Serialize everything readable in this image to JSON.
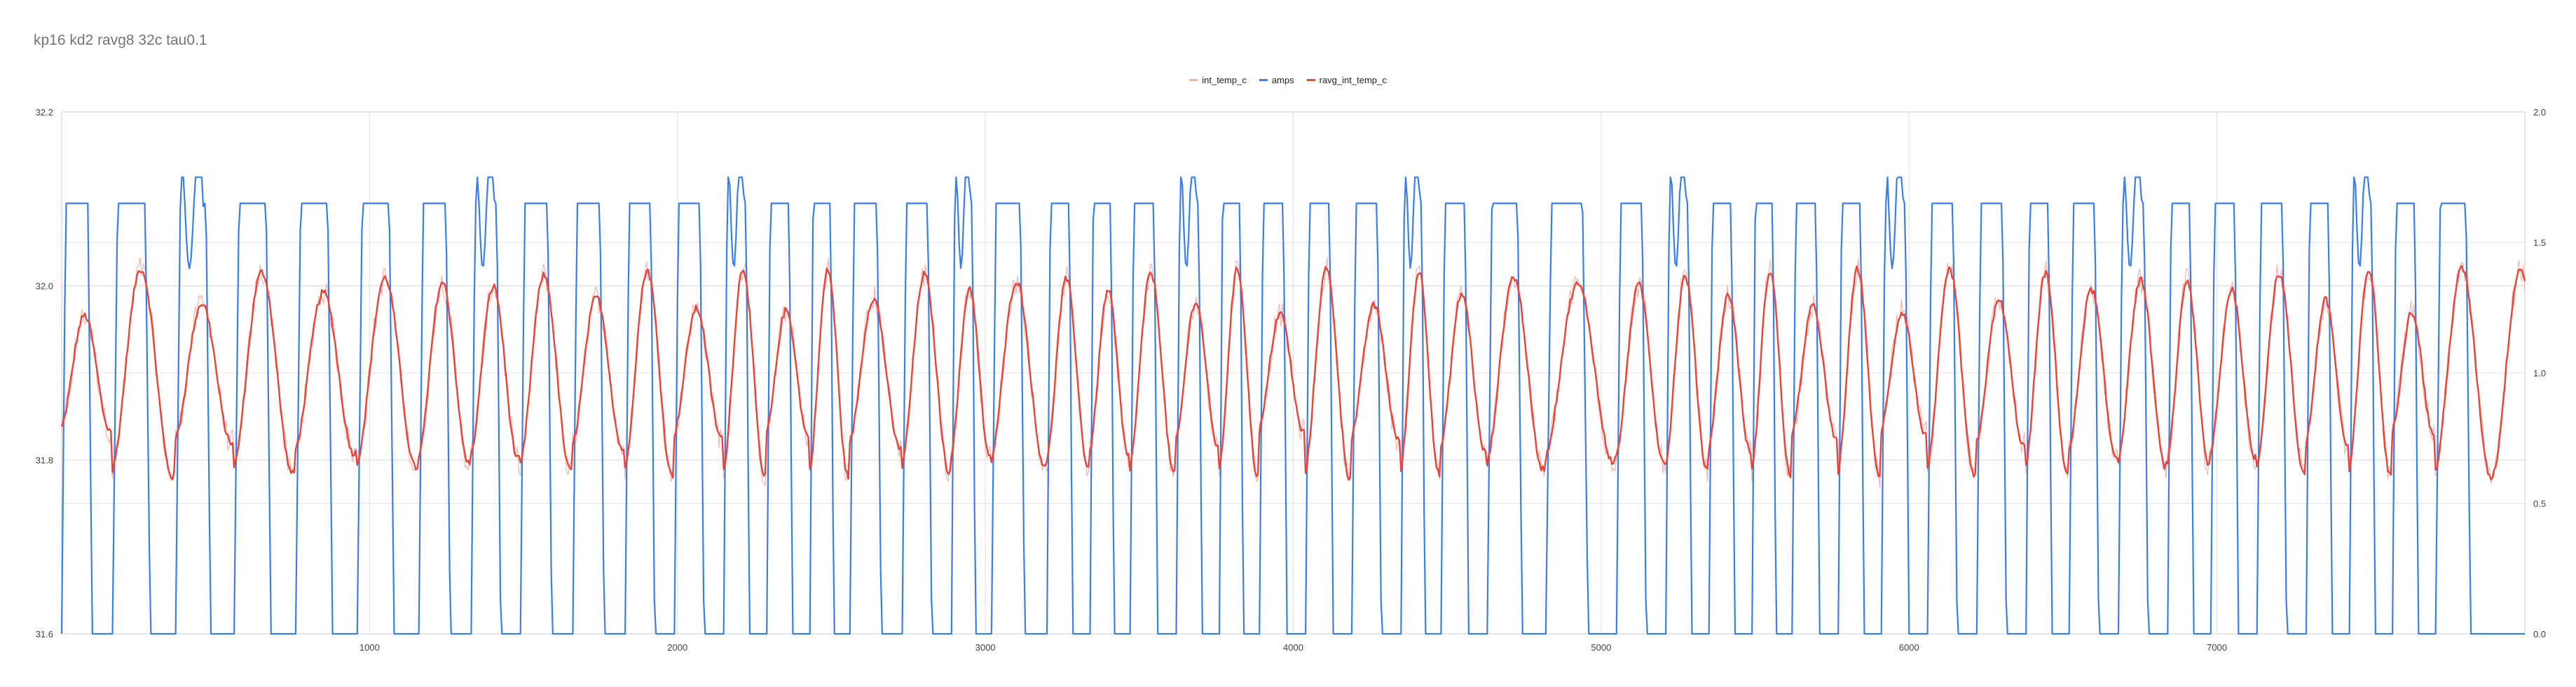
{
  "chart_data": {
    "type": "line",
    "title": "kp16 kd2 ravg8 32c tau0.1",
    "xlim": [
      0,
      8000
    ],
    "x_ticks": [
      1000,
      2000,
      3000,
      4000,
      5000,
      6000,
      7000
    ],
    "y_left": {
      "lim": [
        31.6,
        32.2
      ],
      "ticks": [
        "31.6",
        "31.8",
        "32.0",
        "32.2"
      ]
    },
    "y_right": {
      "lim": [
        0,
        2
      ],
      "ticks": [
        "0.0",
        "0.5",
        "1.0",
        "1.5",
        "2.0"
      ]
    },
    "grid": true,
    "legend_position": "top-center",
    "series": [
      {
        "name": "int_temp_c",
        "axis": "left",
        "color": "#f4b6b1",
        "stroke_width": 1.2,
        "values": []
      },
      {
        "name": "amps",
        "axis": "right",
        "color": "#3b7de9",
        "stroke_width": 2.2,
        "values": []
      },
      {
        "name": "ravg_int_temp_c",
        "axis": "left",
        "color": "#e8443a",
        "stroke_width": 2.4,
        "values": []
      }
    ],
    "cycle_starts": [
      0,
      165,
      370,
      560,
      760,
      960,
      1160,
      1330,
      1490,
      1660,
      1830,
      1990,
      2150,
      2290,
      2430,
      2560,
      2730,
      2890,
      3020,
      3200,
      3340,
      3470,
      3620,
      3760,
      3890,
      4040,
      4190,
      4350,
      4480,
      4630,
      4820,
      5050,
      5210,
      5350,
      5490,
      5620,
      5770,
      5910,
      6060,
      6220,
      6380,
      6520,
      6680,
      6840,
      6980,
      7130,
      7290,
      7430,
      7570,
      7710,
      7900
    ],
    "amps_high": 1.65,
    "amps_low": 0.0,
    "temp_base": 31.9,
    "temp_amplitude": 0.12
  }
}
